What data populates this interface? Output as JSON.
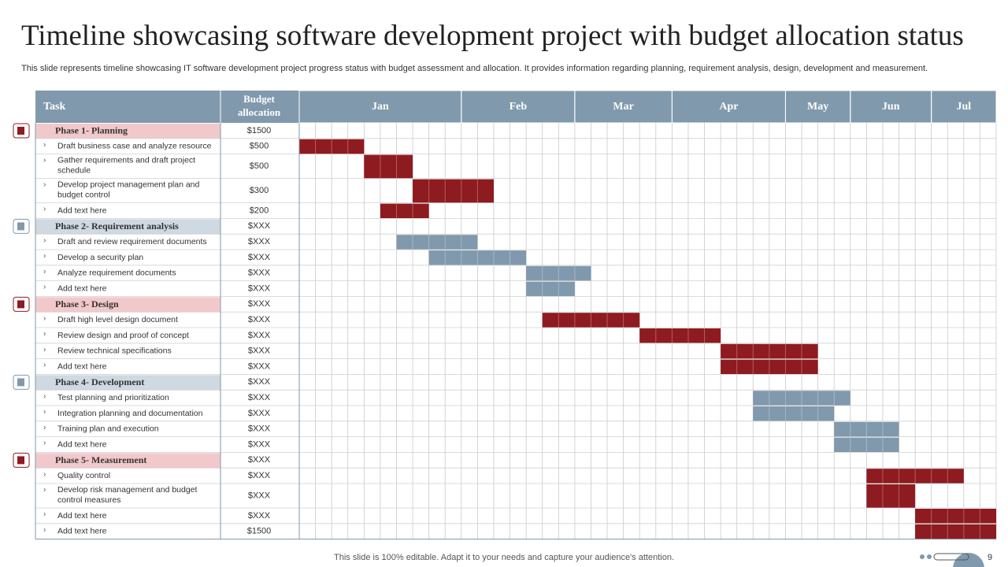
{
  "title": "Timeline showcasing software development project with budget allocation status",
  "subtitle": "This slide represents timeline showcasing IT software development project progress status with budget assessment and allocation. It provides information regarding planning, requirement analysis, design, development and measurement.",
  "table": {
    "headers": [
      "Task",
      "Budget allocation"
    ],
    "months": [
      {
        "name": "Jan",
        "cells": 10
      },
      {
        "name": "Feb",
        "cells": 7
      },
      {
        "name": "Mar",
        "cells": 6
      },
      {
        "name": "Apr",
        "cells": 7
      },
      {
        "name": "May",
        "cells": 4
      },
      {
        "name": "Jun",
        "cells": 5
      },
      {
        "name": "Jul",
        "cells": 4
      }
    ],
    "phases": [
      {
        "name": "Phase 1- Planning",
        "budget": "$1500",
        "color": "#f2c9cb",
        "bar_color": "#8e1b20",
        "tasks": [
          {
            "name": "Draft business case and analyze resource",
            "budget": "$500",
            "start": 0,
            "span": 4
          },
          {
            "name": "Gather requirements and draft project schedule",
            "budget": "$500",
            "start": 4,
            "span": 3
          },
          {
            "name": "Develop project management plan and budget control",
            "budget": "$300",
            "start": 7,
            "span": 5
          },
          {
            "name": "Add text here",
            "budget": "$200",
            "start": 5,
            "span": 3
          }
        ]
      },
      {
        "name": "Phase 2- Requirement analysis",
        "budget": "$XXX",
        "color": "#cfd9e1",
        "bar_color": "#8199ad",
        "tasks": [
          {
            "name": "Draft and review requirement documents",
            "budget": "$XXX",
            "start": 6,
            "span": 5
          },
          {
            "name": "Develop a security plan",
            "budget": "$XXX",
            "start": 8,
            "span": 6
          },
          {
            "name": "Analyze requirement documents",
            "budget": "$XXX",
            "start": 14,
            "span": 4
          },
          {
            "name": "Add text here",
            "budget": "$XXX",
            "start": 14,
            "span": 3
          }
        ]
      },
      {
        "name": "Phase 3- Design",
        "budget": "$XXX",
        "color": "#f2c9cb",
        "bar_color": "#8e1b20",
        "tasks": [
          {
            "name": "Draft high level design document",
            "budget": "$XXX",
            "start": 15,
            "span": 6
          },
          {
            "name": "Review design and proof of concept",
            "budget": "$XXX",
            "start": 21,
            "span": 5
          },
          {
            "name": "Review technical specifications",
            "budget": "$XXX",
            "start": 26,
            "span": 6
          },
          {
            "name": "Add text here",
            "budget": "$XXX",
            "start": 26,
            "span": 6
          }
        ]
      },
      {
        "name": "Phase 4- Development",
        "budget": "$XXX",
        "color": "#cfd9e1",
        "bar_color": "#8199ad",
        "tasks": [
          {
            "name": "Test planning and prioritization",
            "budget": "$XXX",
            "start": 28,
            "span": 6
          },
          {
            "name": "Integration planning and documentation",
            "budget": "$XXX",
            "start": 28,
            "span": 5
          },
          {
            "name": "Training plan and execution",
            "budget": "$XXX",
            "start": 33,
            "span": 4
          },
          {
            "name": "Add text here",
            "budget": "$XXX",
            "start": 33,
            "span": 4
          }
        ]
      },
      {
        "name": "Phase 5- Measurement",
        "budget": "$XXX",
        "color": "#f2c9cb",
        "bar_color": "#8e1b20",
        "tasks": [
          {
            "name": "Quality control",
            "budget": "$XXX",
            "start": 35,
            "span": 6
          },
          {
            "name": "Develop risk management and budget control measures",
            "budget": "$XXX",
            "start": 35,
            "span": 3
          },
          {
            "name": "Add text here",
            "budget": "$XXX",
            "start": 38,
            "span": 5
          },
          {
            "name": "Add text here",
            "budget": "$1500",
            "start": 38,
            "span": 5
          }
        ]
      }
    ]
  },
  "footer": "This slide is 100% editable. Adapt it to your needs and capture your audience's attention.",
  "page_number": "9"
}
